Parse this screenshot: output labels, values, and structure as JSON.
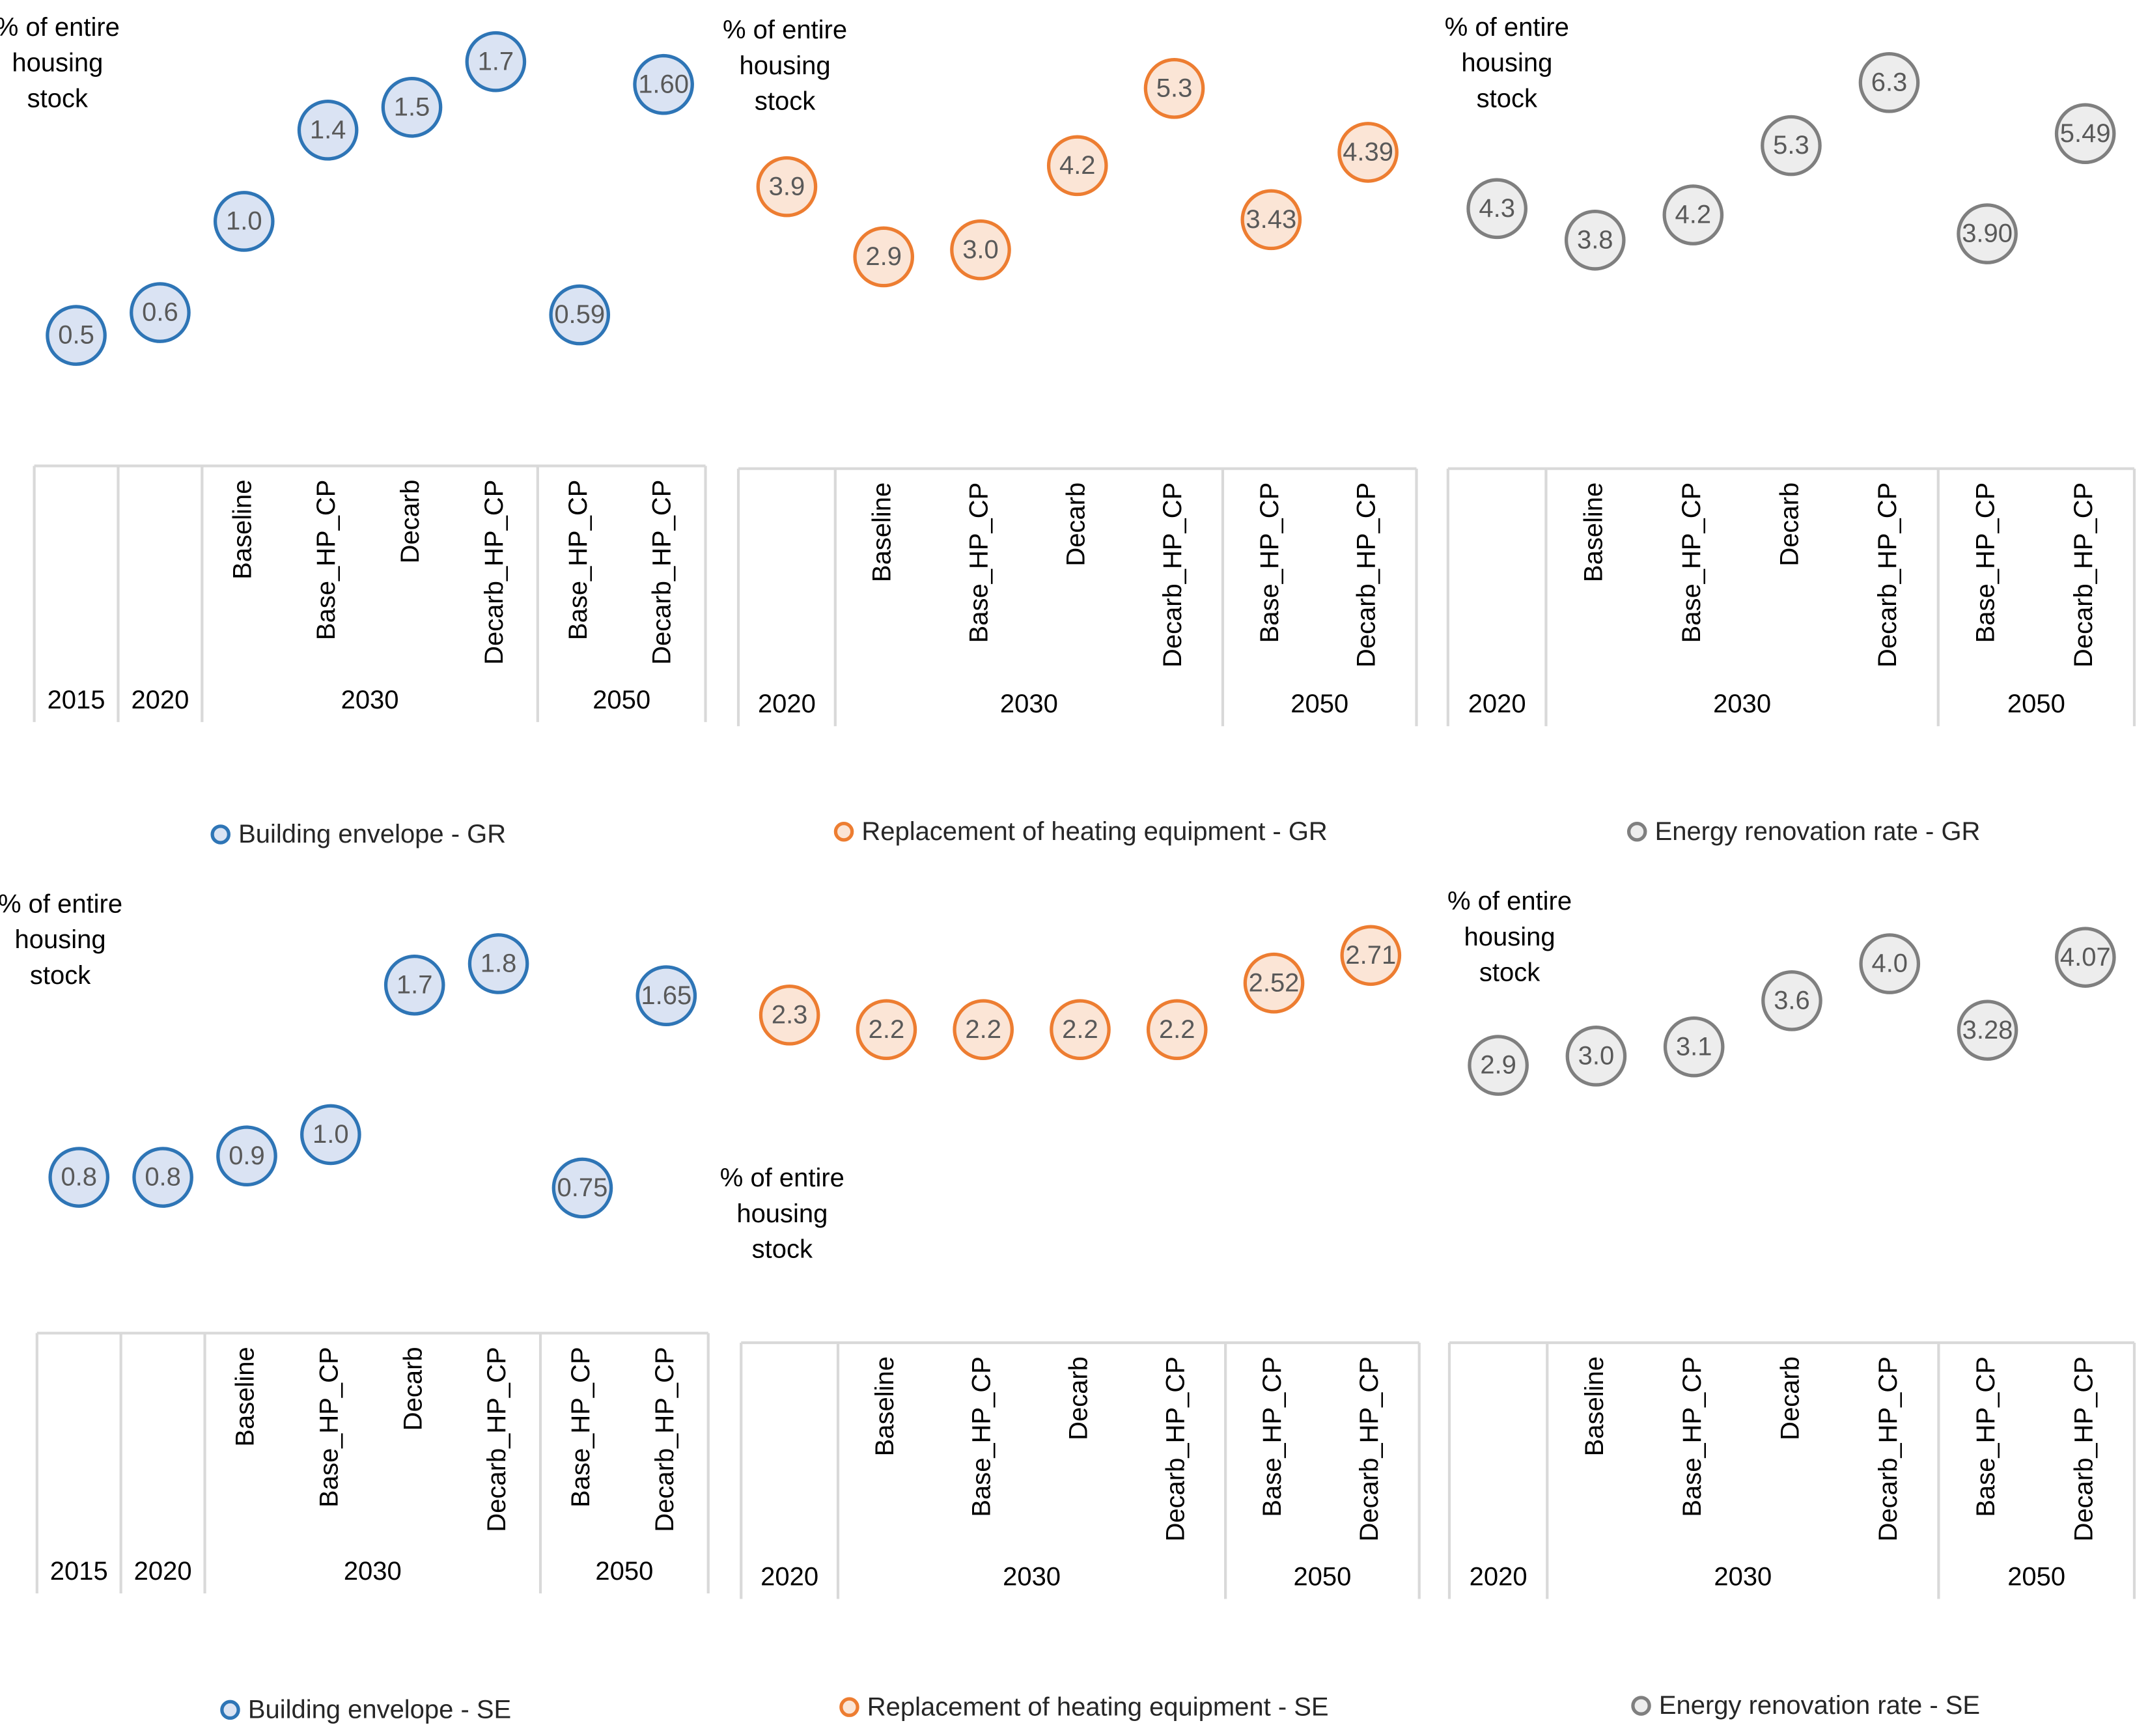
{
  "chart_data": [
    {
      "type": "scatter",
      "y_label": "% of entire housing stock",
      "ylim": [
        0,
        2
      ],
      "groups": [
        {
          "name": "2015",
          "categories": [
            null
          ]
        },
        {
          "name": "2020",
          "categories": [
            null
          ]
        },
        {
          "name": "2030",
          "categories": [
            "Baseline",
            "Base_HP_CP",
            "Decarb",
            "Decarb_HP_CP"
          ]
        },
        {
          "name": "2050",
          "categories": [
            "Base_HP_CP",
            "Decarb_HP_CP"
          ]
        }
      ],
      "series": [
        {
          "name": "Building envelope - GR",
          "color": "#2e75b6",
          "fill": "#dae3f3",
          "values": [
            0.5,
            0.6,
            1.0,
            1.4,
            1.5,
            1.7,
            0.59,
            1.6
          ],
          "value_labels": [
            "0.5",
            "0.6",
            "1.0",
            "1.4",
            "1.5",
            "1.7",
            "0.59",
            "1.60"
          ]
        }
      ]
    },
    {
      "type": "scatter",
      "y_label": "% of entire housing stock",
      "ylim": [
        0,
        6.5
      ],
      "groups": [
        {
          "name": "2020",
          "categories": [
            null
          ]
        },
        {
          "name": "2030",
          "categories": [
            "Baseline",
            "Base_HP_CP",
            "Decarb",
            "Decarb_HP_CP"
          ]
        },
        {
          "name": "2050",
          "categories": [
            "Base_HP_CP",
            "Decarb_HP_CP"
          ]
        }
      ],
      "series": [
        {
          "name": "Replacement of heating equipment - GR",
          "color": "#ed7d31",
          "fill": "#fbe5d6",
          "values": [
            3.9,
            2.9,
            3.0,
            4.2,
            5.3,
            3.43,
            4.39
          ],
          "value_labels": [
            "3.9",
            "2.9",
            "3.0",
            "4.2",
            "5.3",
            "3.43",
            "4.39"
          ]
        }
      ]
    },
    {
      "type": "scatter",
      "y_label": "% of entire housing stock",
      "ylim": [
        0,
        7.5
      ],
      "groups": [
        {
          "name": "2020",
          "categories": [
            null
          ]
        },
        {
          "name": "2030",
          "categories": [
            "Baseline",
            "Base_HP_CP",
            "Decarb",
            "Decarb_HP_CP"
          ]
        },
        {
          "name": "2050",
          "categories": [
            "Base_HP_CP",
            "Decarb_HP_CP"
          ]
        }
      ],
      "series": [
        {
          "name": "Energy renovation rate - GR",
          "color": "#7f7f7f",
          "fill": "#ededed",
          "values": [
            4.3,
            3.8,
            4.2,
            5.3,
            6.3,
            3.9,
            5.49
          ],
          "value_labels": [
            "4.3",
            "3.8",
            "4.2",
            "5.3",
            "6.3",
            "3.90",
            "5.49"
          ]
        }
      ]
    },
    {
      "type": "scatter",
      "y_label": "% of entire housing stock",
      "ylim": [
        0,
        2.2
      ],
      "groups": [
        {
          "name": "2015",
          "categories": [
            null
          ]
        },
        {
          "name": "2020",
          "categories": [
            null
          ]
        },
        {
          "name": "2030",
          "categories": [
            "Baseline",
            "Base_HP_CP",
            "Decarb",
            "Decarb_HP_CP"
          ]
        },
        {
          "name": "2050",
          "categories": [
            "Base_HP_CP",
            "Decarb_HP_CP"
          ]
        }
      ],
      "series": [
        {
          "name": "Building envelope - SE",
          "color": "#2e75b6",
          "fill": "#dae3f3",
          "values": [
            0.8,
            0.8,
            0.9,
            1.0,
            1.7,
            1.8,
            0.75,
            1.65
          ],
          "value_labels": [
            "0.8",
            "0.8",
            "0.9",
            "1.0",
            "1.7",
            "1.8",
            "0.75",
            "1.65"
          ]
        }
      ]
    },
    {
      "type": "scatter",
      "y_label": "% of entire housing stock",
      "ylim": [
        0,
        3.25
      ],
      "groups": [
        {
          "name": "2020",
          "categories": [
            null
          ]
        },
        {
          "name": "2030",
          "categories": [
            "Baseline",
            "Base_HP_CP",
            "Decarb",
            "Decarb_HP_CP"
          ]
        },
        {
          "name": "2050",
          "categories": [
            "Base_HP_CP",
            "Decarb_HP_CP"
          ]
        }
      ],
      "series": [
        {
          "name": "Replacement of heating equipment - SE",
          "color": "#ed7d31",
          "fill": "#fbe5d6",
          "values": [
            2.3,
            2.2,
            2.2,
            2.2,
            2.2,
            2.52,
            2.71
          ]
        }
      ]
    },
    {
      "type": "scatter",
      "y_label": "% of entire housing stock",
      "ylim": [
        0,
        5
      ],
      "groups": [
        {
          "name": "2020",
          "categories": [
            null
          ]
        },
        {
          "name": "2030",
          "categories": [
            "Baseline",
            "Base_HP_CP",
            "Decarb",
            "Decarb_HP_CP"
          ]
        },
        {
          "name": "2050",
          "categories": [
            "Base_HP_CP",
            "Decarb_HP_CP"
          ]
        }
      ],
      "series": [
        {
          "name": "Energy renovation rate - SE",
          "color": "#7f7f7f",
          "fill": "#ededed",
          "values": [
            2.9,
            3.0,
            3.1,
            3.6,
            4.0,
            3.28,
            4.07
          ],
          "value_labels": [
            "2.9",
            "3.0",
            "3.1",
            "3.6",
            "4.0",
            "3.28",
            "4.07"
          ]
        }
      ]
    }
  ]
}
